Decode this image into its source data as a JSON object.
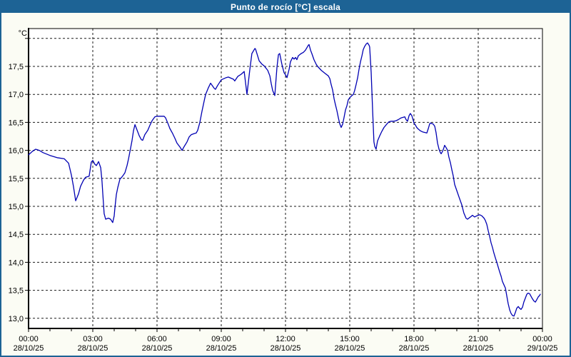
{
  "window": {
    "title": "Punto de rocío [°C] escala"
  },
  "colors": {
    "titlebar": "#1d6395",
    "window_border": "#1d6395",
    "content_bg": "#fbfcf4",
    "plot_bg": "#ffffff",
    "grid": "#1a1a1a",
    "axis": "#000000",
    "text": "#000000",
    "line": "#0000b3"
  },
  "chart_data": {
    "type": "line",
    "title": "Punto de rocío [°C] escala",
    "y_unit_label": "°C",
    "xlabel": "",
    "ylabel": "",
    "xlim_hours": [
      0,
      24
    ],
    "ylim": [
      12.82,
      18.18
    ],
    "grid": "dashed",
    "legend": "none",
    "line_color": "#0000b3",
    "grid_color": "#1a1a1a",
    "plot_bg": "#ffffff",
    "y_ticks": [
      {
        "value": 18.0,
        "label": ""
      },
      {
        "value": 17.5,
        "label": "17,5"
      },
      {
        "value": 17.0,
        "label": "17,0"
      },
      {
        "value": 16.5,
        "label": "16,5"
      },
      {
        "value": 16.0,
        "label": "16,0"
      },
      {
        "value": 15.5,
        "label": "15,5"
      },
      {
        "value": 15.0,
        "label": "15,0"
      },
      {
        "value": 14.5,
        "label": "14,5"
      },
      {
        "value": 14.0,
        "label": "14,0"
      },
      {
        "value": 13.5,
        "label": "13,5"
      },
      {
        "value": 13.0,
        "label": "13,0"
      }
    ],
    "x_major_ticks": [
      {
        "hours": 0,
        "time": "00:00",
        "date": "28/10/25"
      },
      {
        "hours": 3,
        "time": "03:00",
        "date": "28/10/25"
      },
      {
        "hours": 6,
        "time": "06:00",
        "date": "28/10/25"
      },
      {
        "hours": 9,
        "time": "09:00",
        "date": "28/10/25"
      },
      {
        "hours": 12,
        "time": "12:00",
        "date": "28/10/25"
      },
      {
        "hours": 15,
        "time": "15:00",
        "date": "28/10/25"
      },
      {
        "hours": 18,
        "time": "18:00",
        "date": "28/10/25"
      },
      {
        "hours": 21,
        "time": "21:00",
        "date": "28/10/25"
      },
      {
        "hours": 24,
        "time": "00:00",
        "date": "29/10/25"
      }
    ],
    "x_minor_every_hours": 1,
    "series": [
      {
        "name": "Punto de rocío [°C]",
        "points": [
          [
            0.0,
            15.92
          ],
          [
            0.17,
            15.98
          ],
          [
            0.33,
            16.02
          ],
          [
            0.5,
            16.0
          ],
          [
            0.67,
            15.96
          ],
          [
            1.0,
            15.91
          ],
          [
            1.33,
            15.87
          ],
          [
            1.67,
            15.85
          ],
          [
            1.87,
            15.77
          ],
          [
            2.0,
            15.56
          ],
          [
            2.1,
            15.35
          ],
          [
            2.2,
            15.1
          ],
          [
            2.33,
            15.22
          ],
          [
            2.43,
            15.36
          ],
          [
            2.57,
            15.47
          ],
          [
            2.67,
            15.52
          ],
          [
            2.83,
            15.54
          ],
          [
            2.93,
            15.79
          ],
          [
            3.0,
            15.82
          ],
          [
            3.1,
            15.75
          ],
          [
            3.17,
            15.73
          ],
          [
            3.27,
            15.8
          ],
          [
            3.37,
            15.69
          ],
          [
            3.43,
            15.45
          ],
          [
            3.47,
            15.21
          ],
          [
            3.53,
            14.87
          ],
          [
            3.6,
            14.77
          ],
          [
            3.73,
            14.79
          ],
          [
            3.83,
            14.77
          ],
          [
            3.93,
            14.71
          ],
          [
            4.0,
            14.83
          ],
          [
            4.03,
            14.96
          ],
          [
            4.1,
            15.21
          ],
          [
            4.17,
            15.34
          ],
          [
            4.27,
            15.49
          ],
          [
            4.33,
            15.51
          ],
          [
            4.43,
            15.56
          ],
          [
            4.5,
            15.6
          ],
          [
            4.6,
            15.73
          ],
          [
            4.67,
            15.85
          ],
          [
            4.77,
            16.05
          ],
          [
            4.83,
            16.17
          ],
          [
            4.9,
            16.35
          ],
          [
            4.97,
            16.46
          ],
          [
            5.07,
            16.36
          ],
          [
            5.17,
            16.26
          ],
          [
            5.27,
            16.19
          ],
          [
            5.33,
            16.18
          ],
          [
            5.43,
            16.28
          ],
          [
            5.57,
            16.36
          ],
          [
            5.67,
            16.45
          ],
          [
            5.77,
            16.53
          ],
          [
            5.9,
            16.6
          ],
          [
            6.0,
            16.61
          ],
          [
            6.17,
            16.61
          ],
          [
            6.33,
            16.61
          ],
          [
            6.4,
            16.58
          ],
          [
            6.5,
            16.49
          ],
          [
            6.6,
            16.39
          ],
          [
            6.73,
            16.3
          ],
          [
            6.83,
            16.22
          ],
          [
            6.93,
            16.13
          ],
          [
            7.07,
            16.06
          ],
          [
            7.17,
            16.0
          ],
          [
            7.27,
            16.07
          ],
          [
            7.4,
            16.15
          ],
          [
            7.5,
            16.24
          ],
          [
            7.6,
            16.28
          ],
          [
            7.73,
            16.3
          ],
          [
            7.83,
            16.31
          ],
          [
            7.9,
            16.36
          ],
          [
            8.0,
            16.5
          ],
          [
            8.1,
            16.7
          ],
          [
            8.2,
            16.88
          ],
          [
            8.27,
            17.0
          ],
          [
            8.4,
            17.12
          ],
          [
            8.5,
            17.2
          ],
          [
            8.67,
            17.11
          ],
          [
            8.73,
            17.09
          ],
          [
            8.83,
            17.16
          ],
          [
            9.0,
            17.26
          ],
          [
            9.23,
            17.3
          ],
          [
            9.33,
            17.31
          ],
          [
            9.57,
            17.27
          ],
          [
            9.63,
            17.24
          ],
          [
            9.77,
            17.32
          ],
          [
            9.93,
            17.36
          ],
          [
            10.07,
            17.41
          ],
          [
            10.2,
            17.0
          ],
          [
            10.33,
            17.43
          ],
          [
            10.43,
            17.73
          ],
          [
            10.57,
            17.82
          ],
          [
            10.6,
            17.81
          ],
          [
            10.77,
            17.6
          ],
          [
            10.9,
            17.54
          ],
          [
            11.0,
            17.51
          ],
          [
            11.17,
            17.43
          ],
          [
            11.27,
            17.33
          ],
          [
            11.33,
            17.2
          ],
          [
            11.4,
            17.07
          ],
          [
            11.5,
            16.98
          ],
          [
            11.6,
            17.48
          ],
          [
            11.67,
            17.71
          ],
          [
            11.73,
            17.73
          ],
          [
            11.83,
            17.54
          ],
          [
            11.93,
            17.39
          ],
          [
            12.0,
            17.35
          ],
          [
            12.07,
            17.3
          ],
          [
            12.17,
            17.45
          ],
          [
            12.23,
            17.58
          ],
          [
            12.33,
            17.66
          ],
          [
            12.4,
            17.63
          ],
          [
            12.47,
            17.66
          ],
          [
            12.53,
            17.62
          ],
          [
            12.6,
            17.69
          ],
          [
            12.73,
            17.73
          ],
          [
            12.83,
            17.75
          ],
          [
            12.93,
            17.79
          ],
          [
            13.07,
            17.88
          ],
          [
            13.1,
            17.89
          ],
          [
            13.17,
            17.79
          ],
          [
            13.23,
            17.73
          ],
          [
            13.33,
            17.62
          ],
          [
            13.43,
            17.54
          ],
          [
            13.5,
            17.5
          ],
          [
            13.67,
            17.43
          ],
          [
            13.83,
            17.38
          ],
          [
            14.0,
            17.33
          ],
          [
            14.07,
            17.28
          ],
          [
            14.13,
            17.18
          ],
          [
            14.2,
            17.08
          ],
          [
            14.27,
            16.92
          ],
          [
            14.33,
            16.82
          ],
          [
            14.4,
            16.71
          ],
          [
            14.47,
            16.58
          ],
          [
            14.53,
            16.48
          ],
          [
            14.6,
            16.41
          ],
          [
            14.67,
            16.47
          ],
          [
            14.73,
            16.58
          ],
          [
            14.8,
            16.72
          ],
          [
            14.87,
            16.8
          ],
          [
            14.93,
            16.9
          ],
          [
            15.0,
            16.94
          ],
          [
            15.1,
            16.98
          ],
          [
            15.17,
            17.0
          ],
          [
            15.23,
            17.07
          ],
          [
            15.3,
            17.18
          ],
          [
            15.37,
            17.3
          ],
          [
            15.43,
            17.44
          ],
          [
            15.5,
            17.58
          ],
          [
            15.57,
            17.69
          ],
          [
            15.63,
            17.8
          ],
          [
            15.7,
            17.86
          ],
          [
            15.77,
            17.9
          ],
          [
            15.83,
            17.92
          ],
          [
            15.9,
            17.88
          ],
          [
            15.93,
            17.85
          ],
          [
            16.0,
            17.4
          ],
          [
            16.07,
            16.7
          ],
          [
            16.13,
            16.15
          ],
          [
            16.17,
            16.07
          ],
          [
            16.23,
            16.02
          ],
          [
            16.27,
            16.11
          ],
          [
            16.3,
            16.17
          ],
          [
            16.4,
            16.26
          ],
          [
            16.5,
            16.34
          ],
          [
            16.6,
            16.41
          ],
          [
            16.73,
            16.47
          ],
          [
            16.83,
            16.51
          ],
          [
            16.93,
            16.52
          ],
          [
            17.07,
            16.52
          ],
          [
            17.17,
            16.53
          ],
          [
            17.27,
            16.55
          ],
          [
            17.4,
            16.58
          ],
          [
            17.5,
            16.59
          ],
          [
            17.57,
            16.6
          ],
          [
            17.63,
            16.55
          ],
          [
            17.7,
            16.52
          ],
          [
            17.77,
            16.62
          ],
          [
            17.83,
            16.66
          ],
          [
            17.9,
            16.62
          ],
          [
            17.97,
            16.53
          ],
          [
            18.0,
            16.49
          ],
          [
            18.07,
            16.45
          ],
          [
            18.13,
            16.41
          ],
          [
            18.2,
            16.38
          ],
          [
            18.3,
            16.35
          ],
          [
            18.4,
            16.33
          ],
          [
            18.5,
            16.32
          ],
          [
            18.6,
            16.31
          ],
          [
            18.67,
            16.39
          ],
          [
            18.73,
            16.47
          ],
          [
            18.77,
            16.49
          ],
          [
            18.83,
            16.48
          ],
          [
            18.9,
            16.47
          ],
          [
            18.97,
            16.43
          ],
          [
            19.03,
            16.32
          ],
          [
            19.1,
            16.13
          ],
          [
            19.17,
            16.02
          ],
          [
            19.23,
            15.96
          ],
          [
            19.27,
            15.94
          ],
          [
            19.33,
            15.98
          ],
          [
            19.4,
            16.05
          ],
          [
            19.43,
            16.09
          ],
          [
            19.5,
            16.05
          ],
          [
            19.57,
            16.0
          ],
          [
            19.63,
            15.88
          ],
          [
            19.7,
            15.78
          ],
          [
            19.77,
            15.65
          ],
          [
            19.83,
            15.55
          ],
          [
            19.9,
            15.39
          ],
          [
            20.0,
            15.28
          ],
          [
            20.1,
            15.17
          ],
          [
            20.23,
            15.03
          ],
          [
            20.33,
            14.88
          ],
          [
            20.43,
            14.79
          ],
          [
            20.5,
            14.77
          ],
          [
            20.6,
            14.8
          ],
          [
            20.67,
            14.82
          ],
          [
            20.73,
            14.84
          ],
          [
            20.83,
            14.81
          ],
          [
            20.93,
            14.83
          ],
          [
            21.0,
            14.84
          ],
          [
            21.07,
            14.85
          ],
          [
            21.17,
            14.83
          ],
          [
            21.27,
            14.79
          ],
          [
            21.33,
            14.75
          ],
          [
            21.4,
            14.68
          ],
          [
            21.47,
            14.56
          ],
          [
            21.53,
            14.47
          ],
          [
            21.6,
            14.35
          ],
          [
            21.67,
            14.26
          ],
          [
            21.73,
            14.17
          ],
          [
            21.8,
            14.08
          ],
          [
            21.87,
            14.0
          ],
          [
            21.93,
            13.92
          ],
          [
            22.0,
            13.83
          ],
          [
            22.07,
            13.75
          ],
          [
            22.13,
            13.66
          ],
          [
            22.2,
            13.6
          ],
          [
            22.27,
            13.54
          ],
          [
            22.33,
            13.41
          ],
          [
            22.4,
            13.26
          ],
          [
            22.47,
            13.15
          ],
          [
            22.53,
            13.09
          ],
          [
            22.6,
            13.05
          ],
          [
            22.67,
            13.04
          ],
          [
            22.73,
            13.1
          ],
          [
            22.8,
            13.18
          ],
          [
            22.87,
            13.21
          ],
          [
            22.93,
            13.18
          ],
          [
            23.0,
            13.16
          ],
          [
            23.07,
            13.2
          ],
          [
            23.13,
            13.29
          ],
          [
            23.2,
            13.36
          ],
          [
            23.27,
            13.43
          ],
          [
            23.33,
            13.45
          ],
          [
            23.4,
            13.44
          ],
          [
            23.47,
            13.39
          ],
          [
            23.53,
            13.35
          ],
          [
            23.6,
            13.31
          ],
          [
            23.67,
            13.29
          ],
          [
            23.73,
            13.33
          ],
          [
            23.8,
            13.38
          ],
          [
            23.87,
            13.41
          ],
          [
            23.9,
            13.43
          ]
        ]
      }
    ]
  }
}
